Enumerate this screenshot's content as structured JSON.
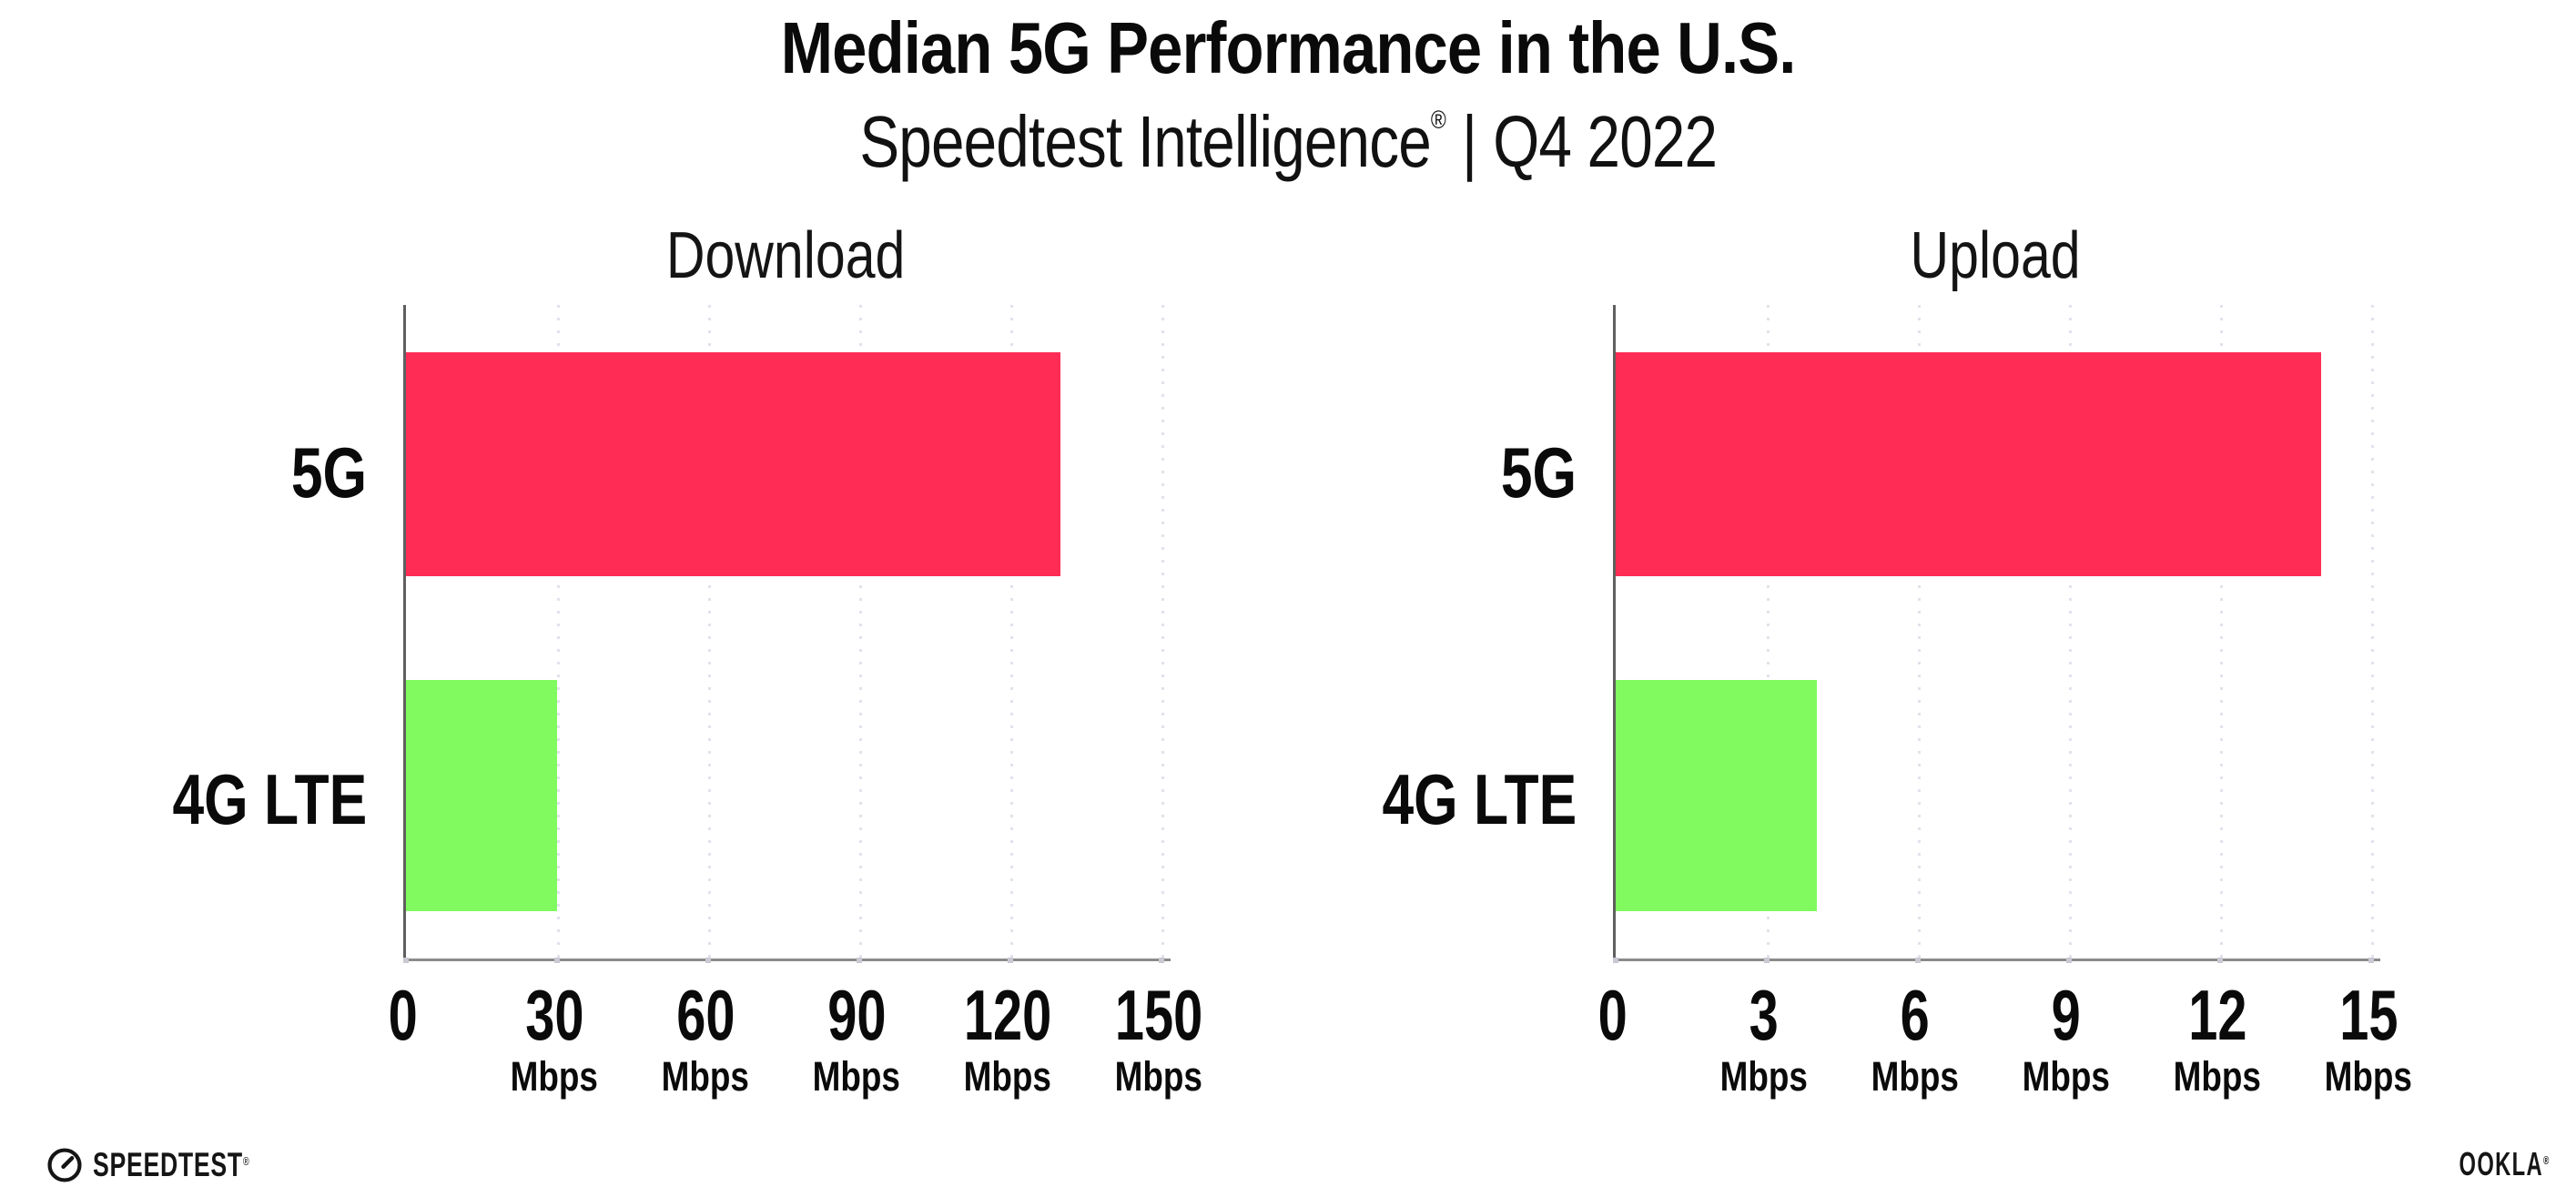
{
  "header": {
    "title": "Median 5G Performance in the U.S.",
    "subtitle_brand": "Speedtest Intelligence",
    "subtitle_reg": "®",
    "subtitle_sep": "|",
    "subtitle_period": "Q4 2022"
  },
  "chart_data": [
    {
      "type": "bar",
      "orientation": "horizontal",
      "title": "Download",
      "categories": [
        "5G",
        "4G LTE"
      ],
      "values": [
        130,
        30
      ],
      "unit": "Mbps",
      "xlim": [
        0,
        150
      ],
      "ticks": [
        0,
        30,
        60,
        90,
        120,
        150
      ],
      "tick_unit_label": "Mbps",
      "grid": "dotted-vertical",
      "legend": "none"
    },
    {
      "type": "bar",
      "orientation": "horizontal",
      "title": "Upload",
      "categories": [
        "5G",
        "4G LTE"
      ],
      "values": [
        14,
        4
      ],
      "unit": "Mbps",
      "xlim": [
        0,
        15
      ],
      "ticks": [
        0,
        3,
        6,
        9,
        12,
        15
      ],
      "tick_unit_label": "Mbps",
      "grid": "dotted-vertical",
      "legend": "none"
    }
  ],
  "colors": {
    "bar_5g": "#ff2d55",
    "bar_4g": "#80fa5f",
    "axis": "#8b8b8b",
    "gridline": "#e2e2ec",
    "text": "#0a0a0a"
  },
  "footer": {
    "speedtest_logo_text": "SPEEDTEST",
    "speedtest_reg": "®",
    "ookla_logo_text": "OOKLA",
    "ookla_reg": "®"
  }
}
